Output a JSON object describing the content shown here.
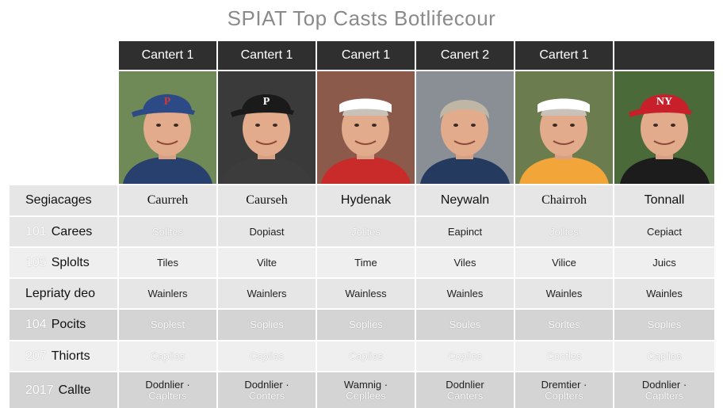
{
  "title": "SPIAT Top Casts Botlifecour",
  "colors": {
    "header_bg": "#2f2f2f",
    "row_light": "#e6e6e6",
    "row_dark": "#d4d4d4"
  },
  "columns": [
    {
      "header": "Cantert 1",
      "name": "Caurreh",
      "cap": "blue",
      "hat_letter": "P",
      "shirt": "#27406d",
      "bg": "#6f8a57"
    },
    {
      "header": "Cantert 1",
      "name": "Caurseh",
      "cap": "black",
      "hat_letter": "P",
      "shirt": "#3c3c3c",
      "bg": "#3a3a3a"
    },
    {
      "header": "Canert 1",
      "name": "Hydenak",
      "cap": "visor",
      "hat_letter": "",
      "shirt": "#c92a2a",
      "bg": "#8c5a4a"
    },
    {
      "header": "Canert 2",
      "name": "Neywaln",
      "cap": "none",
      "hat_letter": "",
      "shirt": "#243a5e",
      "bg": "#8a8f96"
    },
    {
      "header": "Cartert 1",
      "name": "Chairroh",
      "cap": "visor-white",
      "hat_letter": "",
      "shirt": "#f2a63a",
      "bg": "#6b7d4e"
    },
    {
      "header": "",
      "name": "Tonnall",
      "cap": "red",
      "hat_letter": "NY",
      "shirt": "#1c1c1c",
      "bg": "#4a6a3a"
    }
  ],
  "header_row_label": "Segiacages",
  "rows": [
    {
      "num": "101",
      "label": "Carees",
      "style": "faint",
      "bg": "a",
      "cells": [
        [
          "Solltes"
        ],
        [
          "Dopiast"
        ],
        [
          "Jolltes"
        ],
        [
          "Eapinct"
        ],
        [
          "Jolltes"
        ],
        [
          "Cepiact"
        ]
      ],
      "faint_mask": [
        true,
        false,
        true,
        false,
        true,
        false
      ]
    },
    {
      "num": "105",
      "label": "Splolts",
      "style": "normal",
      "bg": "c",
      "cells": [
        [
          "Tiles"
        ],
        [
          "Vilte"
        ],
        [
          "Time"
        ],
        [
          "Viles"
        ],
        [
          "Vilice"
        ],
        [
          "Juics"
        ]
      ],
      "faint_mask": [
        false,
        false,
        false,
        false,
        false,
        false
      ]
    },
    {
      "num": "",
      "label": "Lepriaty deo",
      "style": "normal",
      "bg": "a",
      "cells": [
        [
          "Wainlers"
        ],
        [
          "Wainlers"
        ],
        [
          "Wainless"
        ],
        [
          "Wainles"
        ],
        [
          "Wainles"
        ],
        [
          "Wainles"
        ]
      ],
      "faint_mask": [
        false,
        false,
        false,
        false,
        false,
        false
      ]
    },
    {
      "num": "104",
      "label": "Pocits",
      "style": "faint",
      "bg": "b",
      "cells": [
        [
          "Soplest"
        ],
        [
          "Soplies"
        ],
        [
          "Soplies"
        ],
        [
          "Soules"
        ],
        [
          "Sorltes"
        ],
        [
          "Soplies"
        ]
      ],
      "faint_mask": [
        true,
        true,
        true,
        true,
        true,
        true
      ]
    },
    {
      "num": "207",
      "label": "Thiorts",
      "style": "faint",
      "bg": "c",
      "cells": [
        [
          "Caplies"
        ],
        [
          "Coplies"
        ],
        [
          "Caplies"
        ],
        [
          "Coplies"
        ],
        [
          "Contles"
        ],
        [
          "Caplies"
        ]
      ],
      "faint_mask": [
        true,
        true,
        true,
        true,
        true,
        true
      ]
    },
    {
      "num": "2017",
      "label": "Callte",
      "style": "mixed",
      "bg": "b",
      "cells": [
        [
          "Dodnlier ·",
          "Caplters"
        ],
        [
          "Dodnlier ·",
          "Conters"
        ],
        [
          "Wamnig ·",
          "Cepllees"
        ],
        [
          "Dodnlier",
          "Canters"
        ],
        [
          "Dremtier ·",
          "Coplters"
        ],
        [
          "Dodnlier ·",
          "Caplters"
        ]
      ],
      "faint_mask": [
        false,
        false,
        false,
        false,
        false,
        false
      ]
    }
  ]
}
